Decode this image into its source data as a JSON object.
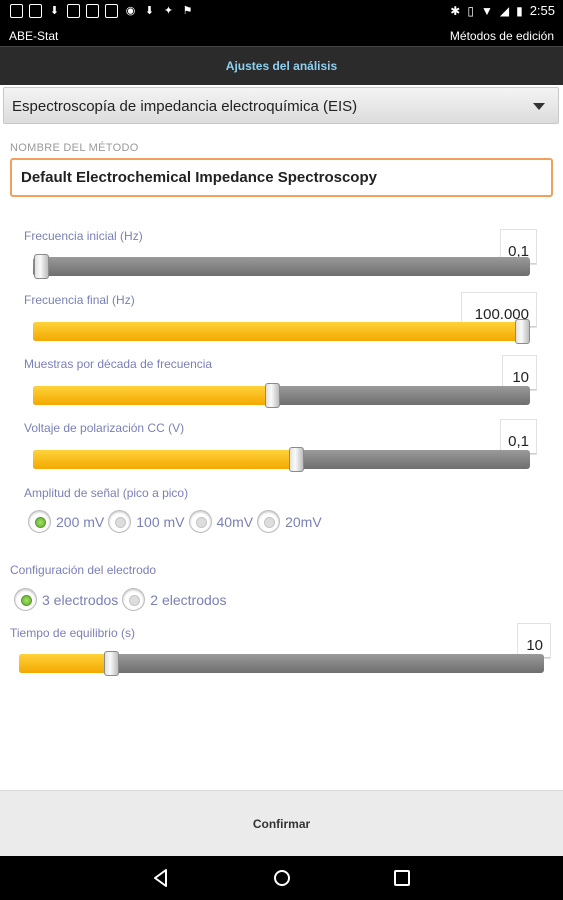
{
  "status_bar": {
    "time": "2:55",
    "left_icons": [
      "image-icon",
      "cloud-icon",
      "download-icon",
      "gallery-icon",
      "mail-icon",
      "phone-icon",
      "shield-icon",
      "download-icon",
      "location-icon",
      "flag-icon"
    ],
    "right_icons": [
      "bluetooth-icon",
      "vibrate-icon",
      "wifi-icon",
      "signal-icon",
      "battery-icon"
    ]
  },
  "app_bar": {
    "title": "ABE-Stat",
    "menu": "Métodos de edición"
  },
  "section": {
    "title": "Ajustes del análisis"
  },
  "analysis_type": {
    "selected": "Espectroscopía de impedancia electroquímica (EIS)"
  },
  "method_name": {
    "label": "NOMBRE DEL MÉTODO",
    "value": "Default Electrochemical Impedance Spectroscopy"
  },
  "params": {
    "initial_freq": {
      "label": "Frecuencia inicial (Hz)",
      "value": "0,1",
      "fraction": 0.0
    },
    "final_freq": {
      "label": "Frecuencia final (Hz)",
      "value": "100.000",
      "fraction": 1.0
    },
    "samples_per_decade": {
      "label": "Muestras por década de frecuencia",
      "value": "10",
      "fraction": 0.48
    },
    "dc_bias": {
      "label": "Voltaje de polarización CC (V)",
      "value": "0,1",
      "fraction": 0.53
    },
    "equilibrium_time": {
      "label": "Tiempo de equilibrio (s)",
      "value": "10",
      "fraction": 0.175
    }
  },
  "amplitude": {
    "label": "Amplitud de señal (pico a pico)",
    "options": [
      "200 mV",
      "100 mV",
      "40mV",
      "20mV"
    ],
    "selected_index": 0
  },
  "electrode": {
    "label": "Configuración del electrodo",
    "options": [
      "3 electrodos",
      "2 electrodos"
    ],
    "selected_index": 0
  },
  "footer": {
    "confirm_label": "Confirmar"
  },
  "colors": {
    "accent_yellow": "#f4a800",
    "label_blue": "#7a80b8",
    "header_text": "#8fd0f0",
    "input_border": "#f0a05a",
    "radio_checked": "#5ab020"
  }
}
